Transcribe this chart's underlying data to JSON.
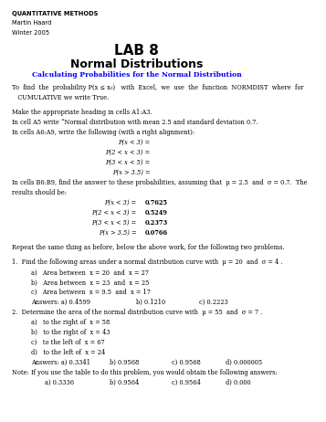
{
  "bg_color": "#ffffff",
  "header_line1": "QUANTITATIVE METHODS",
  "header_line2": "Martin Haard",
  "header_line3": "Winter 2005",
  "title_line1": "LAB 8",
  "title_line2": "Normal Distributions",
  "section_title": "Calculating Probabilities for the Normal Distribution",
  "body": [
    {
      "type": "para",
      "text": "To  find  the  probability P(x ≤ x₀)   with  Excel,  we  use  the  function  NORMDIST  where  for"
    },
    {
      "type": "para_indent",
      "text": "   CUMULATIVE we write True."
    },
    {
      "type": "blank"
    },
    {
      "type": "para",
      "text": "Make the appropriate heading in cells A1:A3."
    },
    {
      "type": "para",
      "text": "In cell A5 write “Normal distribution with mean 2.5 and standard deviation 0.7."
    },
    {
      "type": "para",
      "text": "In cells A6:A9, write the following (with a right alignment):"
    },
    {
      "type": "center",
      "text": "P(x < 3) ="
    },
    {
      "type": "center",
      "text": "P(2 < x < 3) ="
    },
    {
      "type": "center",
      "text": "P(3 < x < 5) ="
    },
    {
      "type": "center",
      "text": "P(x > 3.5) ="
    },
    {
      "type": "para",
      "text": "In cells B6:B9, find the answer to these probabilities, assuming that  μ = 2.5  and  σ = 0.7.  The"
    },
    {
      "type": "para_indent",
      "text": "results should be:"
    },
    {
      "type": "center_answer",
      "label": "P(x < 3) =",
      "value": "0.7625"
    },
    {
      "type": "center_answer",
      "label": "P(2 < x < 3) =",
      "value": "0.5249"
    },
    {
      "type": "center_answer",
      "label": "P(3 < x < 5) =",
      "value": "0.2373"
    },
    {
      "type": "center_answer",
      "label": "P(x > 3.5) =",
      "value": "0.0766"
    },
    {
      "type": "blank"
    },
    {
      "type": "para",
      "text": "Repeat the same thing as before, below the above work, for the following two problems."
    },
    {
      "type": "blank"
    },
    {
      "type": "para",
      "text": "1.  Find the following areas under a normal distribution curve with  μ = 20  and  σ = 4 ."
    },
    {
      "type": "indent",
      "text": "a)   Area between  x = 20  and  x = 27"
    },
    {
      "type": "indent",
      "text": "b)   Area between  x = 23  and  x = 25"
    },
    {
      "type": "indent",
      "text": "c)   Area between  x = 9.5  and  x = 17"
    },
    {
      "type": "answers3",
      "a": "Answers: a) 0.4599",
      "b": "b) 0.1210",
      "c": "c) 0.2223"
    },
    {
      "type": "para",
      "text": "2.  Determine the area of the normal distribution curve with  μ = 55  and  σ = 7 ."
    },
    {
      "type": "indent",
      "text": "a)   to the right of  x = 58"
    },
    {
      "type": "indent",
      "text": "b)   to the right of  x = 43"
    },
    {
      "type": "indent",
      "text": "c)   to the left of  x = 67"
    },
    {
      "type": "indent",
      "text": "d)   to the left of  x = 24"
    },
    {
      "type": "answers4",
      "a": "Answers: a) 0.3341",
      "b": "b) 0.9568",
      "c": "c) 0.9568",
      "d": "d) 0.000005"
    },
    {
      "type": "note",
      "text": "Note: If you use the table to do this problem, you would obtain the following answers:"
    },
    {
      "type": "answers4b",
      "a": "a) 0.3336",
      "b": "b) 0.9564",
      "c": "c) 0.9564",
      "d": "d) 0.000"
    }
  ]
}
